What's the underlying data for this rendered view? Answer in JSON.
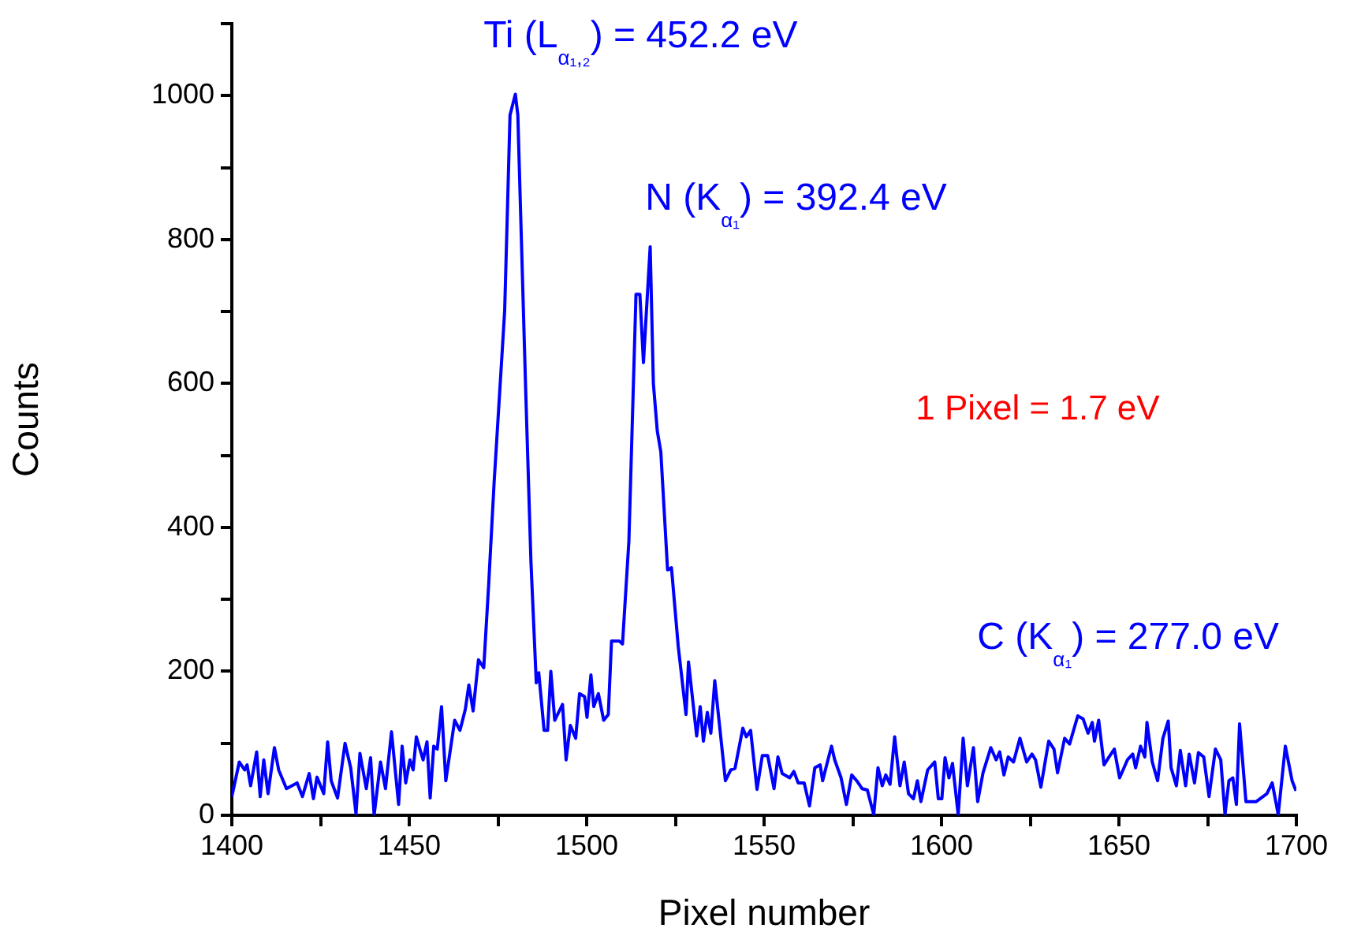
{
  "chart_data": {
    "type": "line",
    "xlabel": "Pixel number",
    "ylabel": "Counts",
    "xlim": [
      1400,
      1700
    ],
    "ylim": [
      0,
      1100
    ],
    "xticks": [
      1400,
      {
        "value": 1425,
        "label": null
      },
      1450,
      {
        "value": 1475,
        "label": null
      },
      1500,
      {
        "value": 1525,
        "label": null
      },
      1550,
      {
        "value": 1575,
        "label": null
      },
      1600,
      {
        "value": 1625,
        "label": null
      },
      1650,
      {
        "value": 1675,
        "label": null
      },
      1700
    ],
    "yticks": [
      0,
      {
        "value": 100,
        "label": null
      },
      200,
      {
        "value": 300,
        "label": null
      },
      400,
      {
        "value": 500,
        "label": null
      },
      600,
      {
        "value": 700,
        "label": null
      },
      800,
      {
        "value": 900,
        "label": null
      },
      1000,
      {
        "value": 1100,
        "label": null
      }
    ],
    "grid": false,
    "legend": false,
    "marker": "none",
    "line_style": "solid",
    "annotations": [
      "Ti (L$_{α₁,₂}$) = 452.2 eV",
      "N (K$_{α₁}$) = 392.4 eV",
      "1 Pixel = 1.7 eV",
      "C (K$_{α₁}$) = 277.0 eV"
    ],
    "series": [
      {
        "color": "#0000ff",
        "x": [
          1400,
          1402.1,
          1403.6,
          1404.3,
          1405.3,
          1407,
          1408,
          1409,
          1410.2,
          1412,
          1413.2,
          1415.4,
          1418.4,
          1419.9,
          1421.8,
          1423,
          1424,
          1425.9,
          1427,
          1428,
          1429.8,
          1431.9,
          1433.5,
          1435,
          1436.1,
          1437.9,
          1439.1,
          1440.1,
          1441.9,
          1443.3,
          1445,
          1447,
          1448,
          1449,
          1450.2,
          1451.1,
          1452,
          1453.9,
          1455,
          1455.9,
          1456.9,
          1457.9,
          1459.1,
          1460.3,
          1462.8,
          1464.3,
          1465.8,
          1466.8,
          1468,
          1469.5,
          1471,
          1472.4,
          1473.9,
          1476.1,
          1476.9,
          1478.4,
          1479.9,
          1480.6,
          1482.8,
          1484.3,
          1485.8,
          1486.5,
          1488,
          1489,
          1489.9,
          1491,
          1493.2,
          1494.2,
          1495.4,
          1496.9,
          1498,
          1499.4,
          1500.1,
          1501.2,
          1502,
          1503.3,
          1504.8,
          1506.1,
          1507,
          1509.2,
          1510.1,
          1511.9,
          1513.9,
          1515,
          1516,
          1517.9,
          1518.8,
          1519.9,
          1520.9,
          1522.8,
          1523.9,
          1525.8,
          1528,
          1528.7,
          1531,
          1532,
          1532.9,
          1534,
          1535,
          1536.1,
          1539.1,
          1540.6,
          1541.8,
          1544,
          1545,
          1546.2,
          1548,
          1549.5,
          1551,
          1552.8,
          1553.9,
          1555.1,
          1557.2,
          1558.4,
          1559.6,
          1561.3,
          1562.8,
          1564.3,
          1565.8,
          1566.5,
          1568,
          1569,
          1569.9,
          1571.7,
          1573.2,
          1574.7,
          1576.1,
          1577.6,
          1579.1,
          1580.9,
          1582.1,
          1583.3,
          1584.3,
          1585.5,
          1586.8,
          1588.3,
          1589.5,
          1590.7,
          1592.1,
          1593.2,
          1594.2,
          1596.1,
          1598.1,
          1599.1,
          1600.1,
          1601,
          1602.1,
          1603.1,
          1604.7,
          1606.1,
          1607.3,
          1609,
          1610.2,
          1611.7,
          1613.9,
          1615.4,
          1616.4,
          1617.6,
          1618.8,
          1620.3,
          1622.1,
          1624,
          1625.5,
          1626.5,
          1628,
          1630.2,
          1631.7,
          1632.7,
          1634.7,
          1636.1,
          1638.4,
          1639.9,
          1641.3,
          1642.5,
          1643.1,
          1644.3,
          1645.8,
          1647.2,
          1648.7,
          1650.2,
          1652.4,
          1653.9,
          1654.7,
          1656.1,
          1657.3,
          1657.9,
          1659.4,
          1660.9,
          1662.4,
          1663.9,
          1664.7,
          1666.2,
          1667.3,
          1668.8,
          1669.8,
          1671.3,
          1672.4,
          1673.9,
          1675.4,
          1677.2,
          1678.7,
          1679.9,
          1681,
          1682.1,
          1683.1,
          1684,
          1685.8,
          1688.7,
          1691.7,
          1693.2,
          1694.9,
          1696.9,
          1698.8,
          1699.9
        ],
        "values": [
          26,
          74,
          63,
          70,
          41,
          88,
          26,
          77,
          30,
          94,
          63,
          37,
          45,
          26,
          58,
          23,
          53,
          30,
          102,
          48,
          24,
          100,
          66,
          2,
          86,
          37,
          80,
          0,
          74,
          37,
          116,
          15,
          96,
          45,
          77,
          63,
          109,
          77,
          102,
          24,
          96,
          92,
          151,
          48,
          132,
          118,
          147,
          181,
          145,
          216,
          205,
          322,
          461,
          637,
          702,
          973,
          1002,
          973,
          593,
          352,
          184,
          198,
          118,
          118,
          200,
          132,
          154,
          77,
          125,
          107,
          169,
          165,
          136,
          195,
          151,
          169,
          132,
          140,
          242,
          242,
          238,
          381,
          724,
          724,
          629,
          790,
          600,
          534,
          505,
          341,
          344,
          235,
          140,
          213,
          110,
          151,
          103,
          143,
          114,
          187,
          48,
          63,
          65,
          121,
          109,
          118,
          36,
          83,
          83,
          37,
          81,
          58,
          52,
          61,
          45,
          45,
          13,
          66,
          70,
          48,
          77,
          96,
          77,
          52,
          15,
          56,
          48,
          37,
          35,
          1,
          66,
          41,
          56,
          43,
          109,
          41,
          74,
          30,
          23,
          48,
          19,
          63,
          74,
          23,
          23,
          80,
          52,
          72,
          1,
          107,
          41,
          94,
          19,
          59,
          94,
          77,
          88,
          56,
          81,
          74,
          107,
          74,
          85,
          77,
          39,
          103,
          92,
          59,
          107,
          99,
          138,
          134,
          114,
          129,
          103,
          132,
          70,
          81,
          92,
          52,
          77,
          85,
          66,
          96,
          81,
          129,
          74,
          48,
          107,
          131,
          66,
          41,
          90,
          41,
          85,
          45,
          87,
          81,
          26,
          92,
          77,
          1,
          48,
          52,
          15,
          127,
          19,
          19,
          30,
          45,
          1,
          96,
          48,
          34
        ]
      }
    ]
  }
}
